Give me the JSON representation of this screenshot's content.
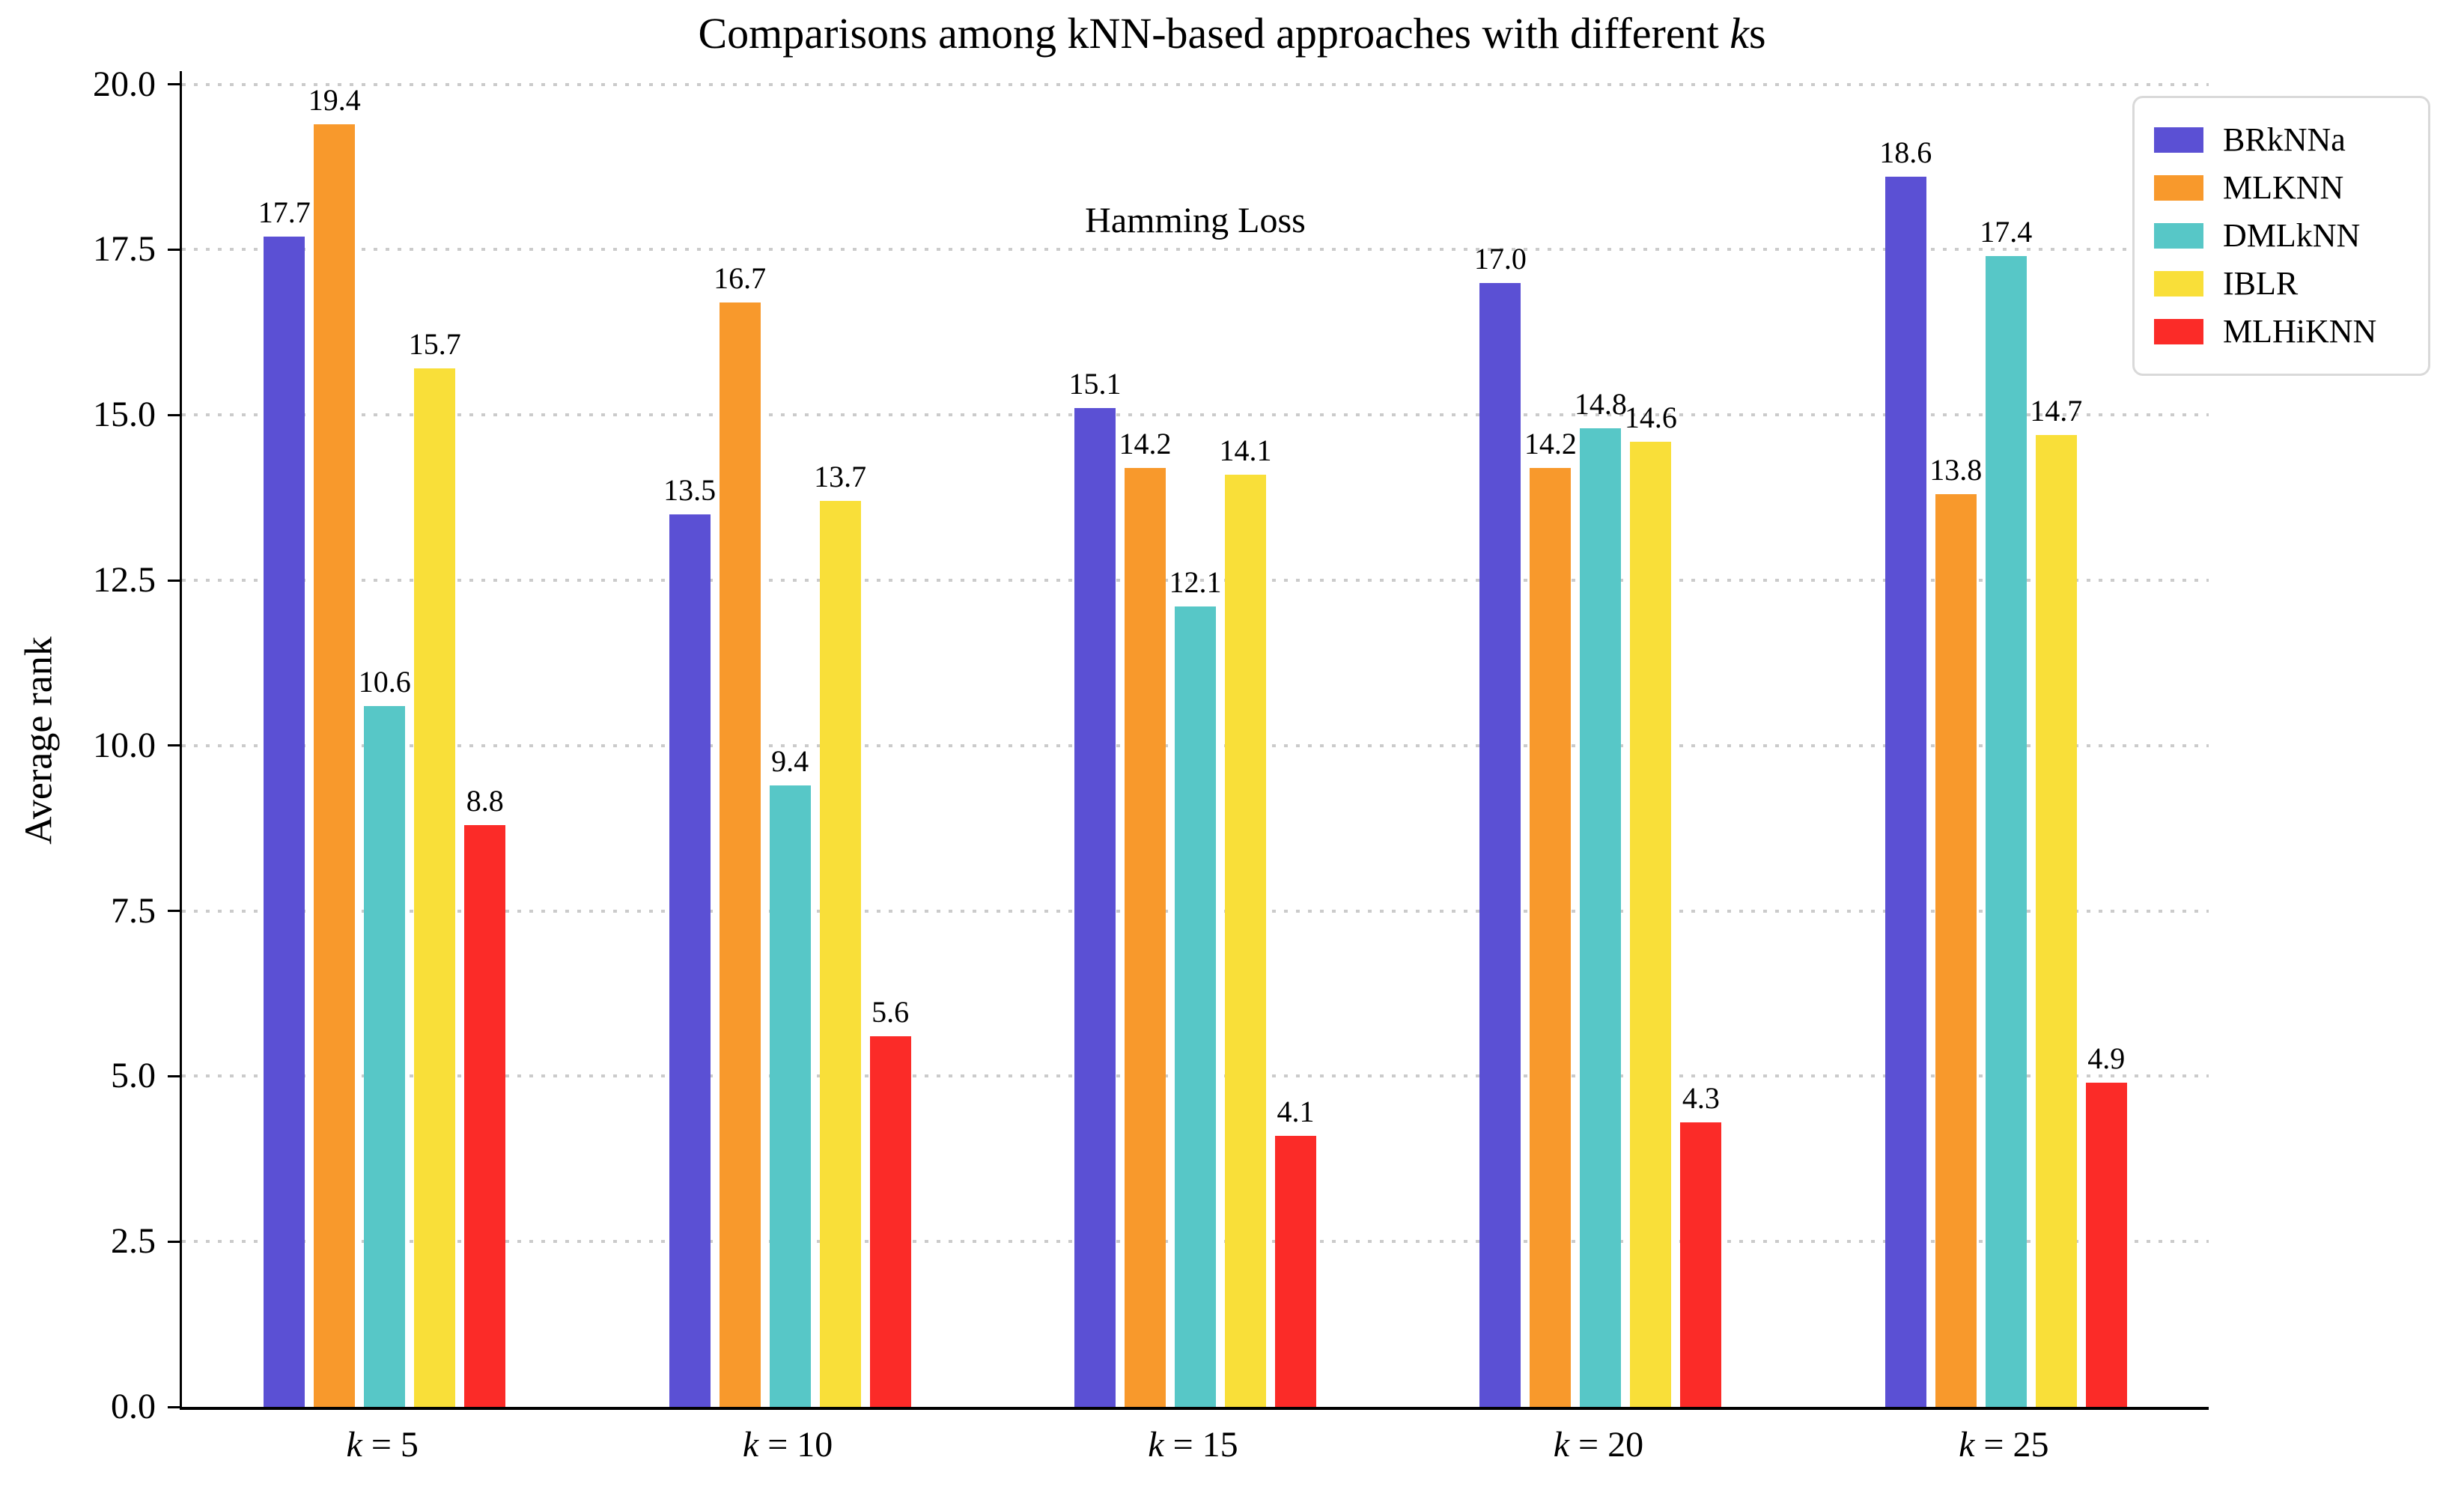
{
  "figure": {
    "title_parts": [
      {
        "text": "Comparisons among kNN-based approaches with different "
      },
      {
        "text": "k",
        "italic": true
      },
      {
        "text": "s"
      }
    ],
    "annotation": "Hamming Loss",
    "ylabel": "Average rank"
  },
  "chart_data": {
    "type": "bar",
    "title": "Comparisons among kNN-based approaches with different ks",
    "annotation": "Hamming Loss",
    "xlabel": "",
    "ylabel": "Average rank",
    "x_variable": "k",
    "x_values": [
      5,
      10,
      15,
      20,
      25
    ],
    "categories": [
      "k = 5",
      "k = 10",
      "k = 15",
      "k = 20",
      "k = 25"
    ],
    "series": [
      {
        "name": "BRkNNa",
        "color": "#5b50d4",
        "values": [
          17.7,
          13.5,
          15.1,
          17.0,
          18.6
        ]
      },
      {
        "name": "MLKNN",
        "color": "#f8992c",
        "values": [
          19.4,
          16.7,
          14.2,
          14.2,
          13.8
        ]
      },
      {
        "name": "DMLkNN",
        "color": "#57c7c7",
        "values": [
          10.6,
          9.4,
          12.1,
          14.8,
          17.4
        ]
      },
      {
        "name": "IBLR",
        "color": "#f9df39",
        "values": [
          15.7,
          13.7,
          14.1,
          14.6,
          14.7
        ]
      },
      {
        "name": "MLHiKNN",
        "color": "#fb2b28",
        "values": [
          8.8,
          5.6,
          4.1,
          4.3,
          4.9
        ]
      }
    ],
    "ylim": [
      0,
      20
    ],
    "yticks": [
      0.0,
      2.5,
      5.0,
      7.5,
      10.0,
      12.5,
      15.0,
      17.5,
      20.0
    ],
    "ytick_labels": [
      "0.0",
      "2.5",
      "5.0",
      "7.5",
      "10.0",
      "12.5",
      "15.0",
      "17.5",
      "20.0"
    ],
    "grid": "horizontal-dotted",
    "grid_color": "#cbcbcb",
    "legend_position": "upper right",
    "bar_label_decimals": 1
  }
}
